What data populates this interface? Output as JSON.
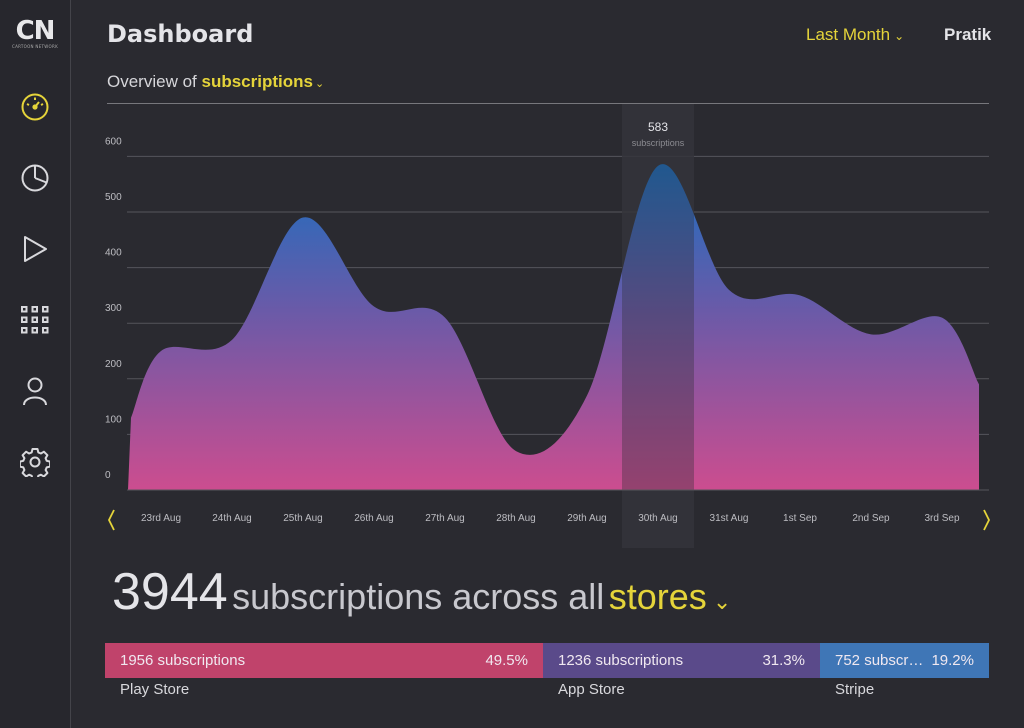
{
  "brand": {
    "logo_text": "CN",
    "logo_sub": "CARTOON NETWORK"
  },
  "header": {
    "title": "Dashboard",
    "period": "Last Month",
    "user": "Pratik"
  },
  "overview": {
    "prefix": "Overview of",
    "metric": "subscriptions"
  },
  "sidebar": {
    "items": [
      {
        "name": "dashboard",
        "icon": "gauge-icon",
        "active": true
      },
      {
        "name": "analytics",
        "icon": "pie-chart-icon",
        "active": false
      },
      {
        "name": "videos",
        "icon": "play-icon",
        "active": false
      },
      {
        "name": "apps",
        "icon": "grid-icon",
        "active": false
      },
      {
        "name": "profile",
        "icon": "user-icon",
        "active": false
      },
      {
        "name": "settings",
        "icon": "gear-icon",
        "active": false
      }
    ]
  },
  "chart_data": {
    "type": "area",
    "title": "",
    "xlabel": "",
    "ylabel": "",
    "categories": [
      "23rd Aug",
      "24th Aug",
      "25th Aug",
      "26th Aug",
      "27th Aug",
      "28th Aug",
      "29th Aug",
      "30th Aug",
      "31st Aug",
      "1st Sep",
      "2nd Sep",
      "3rd Sep"
    ],
    "values": [
      250,
      270,
      490,
      330,
      310,
      70,
      170,
      583,
      360,
      350,
      280,
      310
    ],
    "series": [
      {
        "name": "subscriptions",
        "values": [
          250,
          270,
          490,
          330,
          310,
          70,
          170,
          583,
          360,
          350,
          280,
          310
        ]
      }
    ],
    "yticks": [
      "0",
      "100",
      "200",
      "300",
      "400",
      "500",
      "600"
    ],
    "ylim": [
      0,
      600
    ],
    "grid": true,
    "highlight": {
      "category": "30th Aug",
      "value": "583",
      "label": "subscriptions"
    },
    "colors": {
      "top": "#1a6fc0",
      "mid": "#6a5aa8",
      "bottom": "#cc4d8f",
      "grid": "#55555b",
      "text": "#bdbdc2",
      "accent": "#e5d43a"
    }
  },
  "summary": {
    "total": "3944",
    "text": "subscriptions across all",
    "stores_label": "stores"
  },
  "stores": [
    {
      "name": "Play Store",
      "count_text": "1956 subscriptions",
      "percent": "49.5%",
      "share": 49.5,
      "color": "#c0436b"
    },
    {
      "name": "App Store",
      "count_text": "1236 subscriptions",
      "percent": "31.3%",
      "share": 31.3,
      "color": "#5a4a8a"
    },
    {
      "name": "Stripe",
      "count_text": "752 subscr…",
      "percent": "19.2%",
      "share": 19.2,
      "color": "#3f76b6"
    }
  ]
}
